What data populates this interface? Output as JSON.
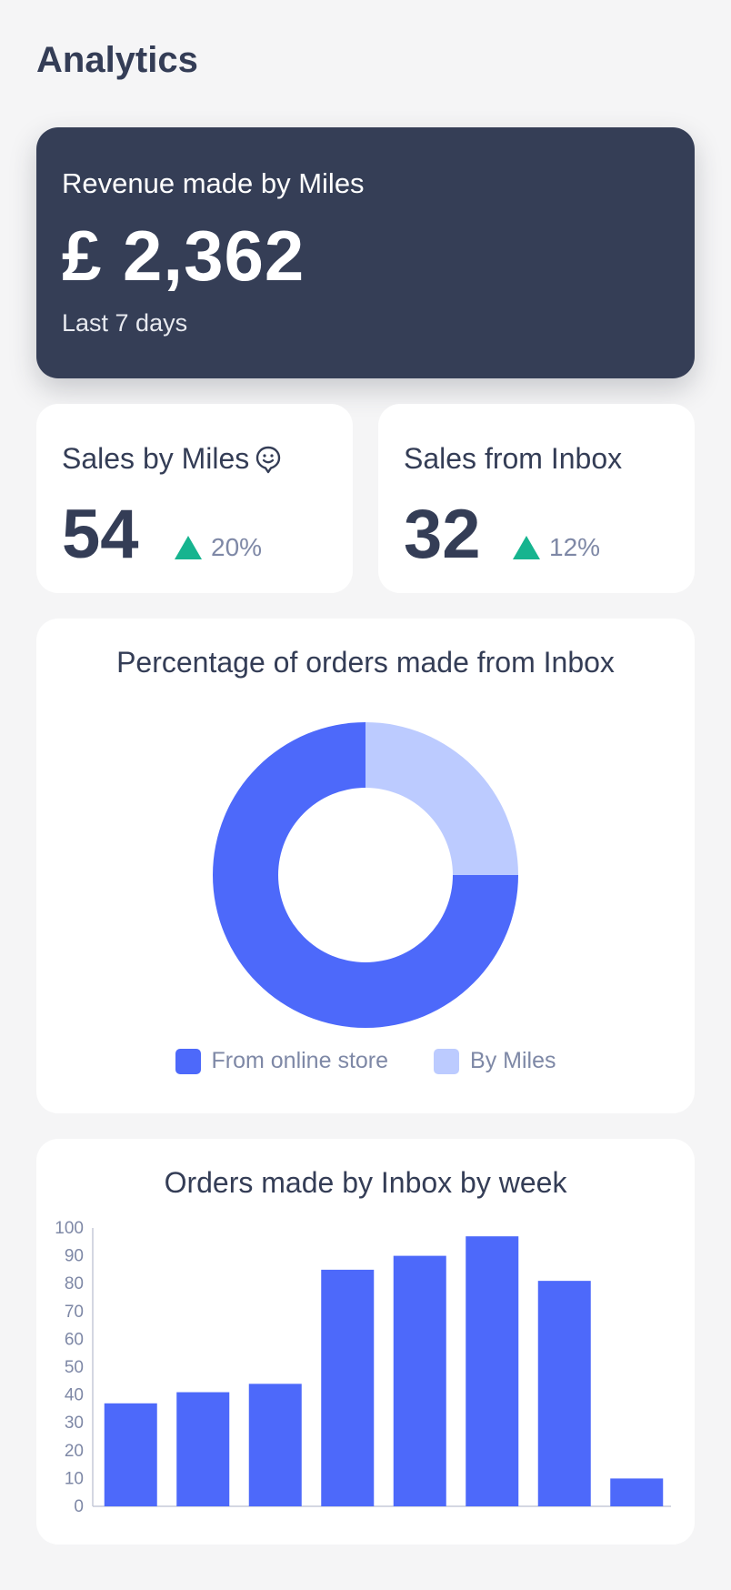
{
  "page": {
    "title": "Analytics"
  },
  "revenue": {
    "label": "Revenue made by Miles",
    "amount": "£ 2,362",
    "period": "Last 7 days"
  },
  "stats": [
    {
      "title": "Sales by Miles",
      "icon": "smiley-chat-icon",
      "value": "54",
      "delta": "20%",
      "trend": "up"
    },
    {
      "title": "Sales from Inbox",
      "value": "32",
      "delta": "12%",
      "trend": "up"
    }
  ],
  "colors": {
    "primary": "#4d69fa",
    "light": "#bccbff",
    "dark": "#353e56",
    "up": "#16b48f",
    "muted": "#7e88a6"
  },
  "chart_data": [
    {
      "type": "pie",
      "title": "Percentage of orders made from Inbox",
      "donut": true,
      "categories": [
        "From online store",
        "By Miles"
      ],
      "values": [
        75,
        25
      ],
      "colors": [
        "#4d69fa",
        "#bccbff"
      ],
      "legend": "bottom"
    },
    {
      "type": "bar",
      "title": "Orders made by Inbox by week",
      "categories": [
        "",
        "",
        "",
        "",
        "",
        "",
        "",
        ""
      ],
      "values": [
        37,
        41,
        44,
        85,
        90,
        97,
        81,
        10
      ],
      "ylim": [
        0,
        100
      ],
      "yticks": [
        0,
        10,
        20,
        30,
        40,
        50,
        60,
        70,
        80,
        90,
        100
      ],
      "color": "#4d69fa",
      "grid": false
    }
  ]
}
